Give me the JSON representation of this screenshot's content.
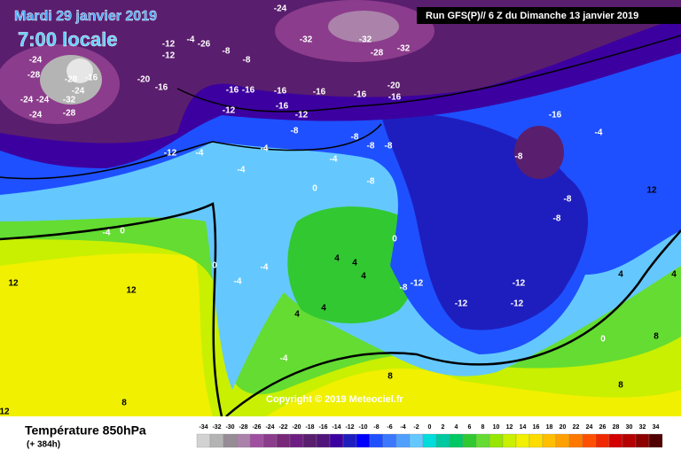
{
  "header": {
    "date": "Mardi 29 janvier 2019",
    "time": "7:00 locale",
    "run": "Run GFS(P)// 6 Z du Dimanche 13 janvier 2019"
  },
  "footer": {
    "title": "Température 850hPa",
    "lead": "(+ 384h)",
    "copyright": "Copyright © 2019 Meteociel.fr"
  },
  "colorbar": {
    "ticks": [
      -34,
      -32,
      -30,
      -28,
      -26,
      -24,
      -22,
      -20,
      -18,
      -16,
      -14,
      -12,
      -10,
      -8,
      -6,
      -4,
      -2,
      0,
      2,
      4,
      6,
      8,
      10,
      12,
      14,
      16,
      18,
      20,
      22,
      24,
      26,
      28,
      30,
      32,
      34
    ],
    "colors": [
      "#d2d2d2",
      "#b4b4b4",
      "#968c96",
      "#aa82aa",
      "#a050a0",
      "#8c3c8c",
      "#782878",
      "#6e1e82",
      "#5a1e6e",
      "#50147a",
      "#3c00a0",
      "#1e1ebe",
      "#0000ff",
      "#1e50ff",
      "#3c78ff",
      "#50a0ff",
      "#64c8ff",
      "#00dcdc",
      "#00c8a0",
      "#00c864",
      "#32c832",
      "#64dc32",
      "#96e600",
      "#c8f000",
      "#f0f000",
      "#ffdc00",
      "#ffbe00",
      "#ffa000",
      "#ff7800",
      "#ff5000",
      "#f02800",
      "#d20000",
      "#b40000",
      "#8c0000",
      "#500000"
    ]
  },
  "contour_labels": [
    -24,
    -28,
    -24,
    -24,
    -24,
    -28,
    -24,
    -16,
    -32,
    -28,
    -20,
    -16,
    -12,
    -12,
    -4,
    -26,
    -8,
    -8,
    -16,
    -12,
    -16,
    -16,
    -16,
    -12,
    -16,
    -16,
    -16,
    -20,
    -32,
    -28,
    -32,
    -24,
    -32,
    -12,
    -4,
    -4,
    -4,
    -8,
    -4,
    -8,
    -8,
    -8,
    0,
    -8,
    -16,
    -8,
    -8,
    -8,
    -4,
    -4,
    0,
    0,
    -4,
    -4,
    12,
    12,
    4,
    4,
    4,
    0,
    -8,
    -12,
    -12,
    -12,
    -12,
    4,
    4,
    -4,
    0,
    4,
    4,
    8,
    8,
    8,
    12,
    8,
    12
  ]
}
